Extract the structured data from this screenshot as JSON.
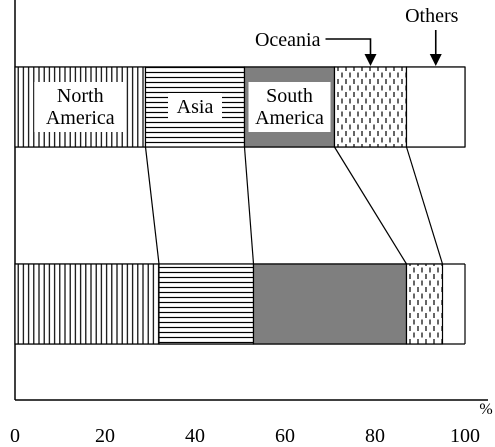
{
  "chart_data": {
    "type": "bar",
    "orientation": "horizontal",
    "stacked": true,
    "x_unit": "%",
    "xlim": [
      0,
      100
    ],
    "x_ticks": [
      0,
      20,
      40,
      60,
      80,
      100
    ],
    "grid": false,
    "categories": [
      "North America",
      "Asia",
      "South America",
      "Oceania",
      "Others"
    ],
    "bars": [
      {
        "values": [
          29,
          22,
          20,
          16,
          13
        ]
      },
      {
        "values": [
          32,
          21,
          34,
          8,
          5
        ]
      }
    ],
    "segment_labels": [
      {
        "category": "North America",
        "lines": [
          "North",
          "America"
        ]
      },
      {
        "category": "Asia",
        "lines": [
          "Asia"
        ]
      },
      {
        "category": "South America",
        "lines": [
          "South",
          "America"
        ]
      }
    ],
    "callouts": [
      {
        "category": "Oceania",
        "text": "Oceania"
      },
      {
        "category": "Others",
        "text": "Others"
      }
    ],
    "patterns": {
      "North America": "vertical-lines",
      "Asia": "horizontal-lines",
      "South America": "solid-gray",
      "Oceania": "dashed-vertical",
      "Others": "none"
    },
    "colors": {
      "South America": "#7f7f7f",
      "axis": "#000000",
      "background": "#ffffff"
    }
  }
}
